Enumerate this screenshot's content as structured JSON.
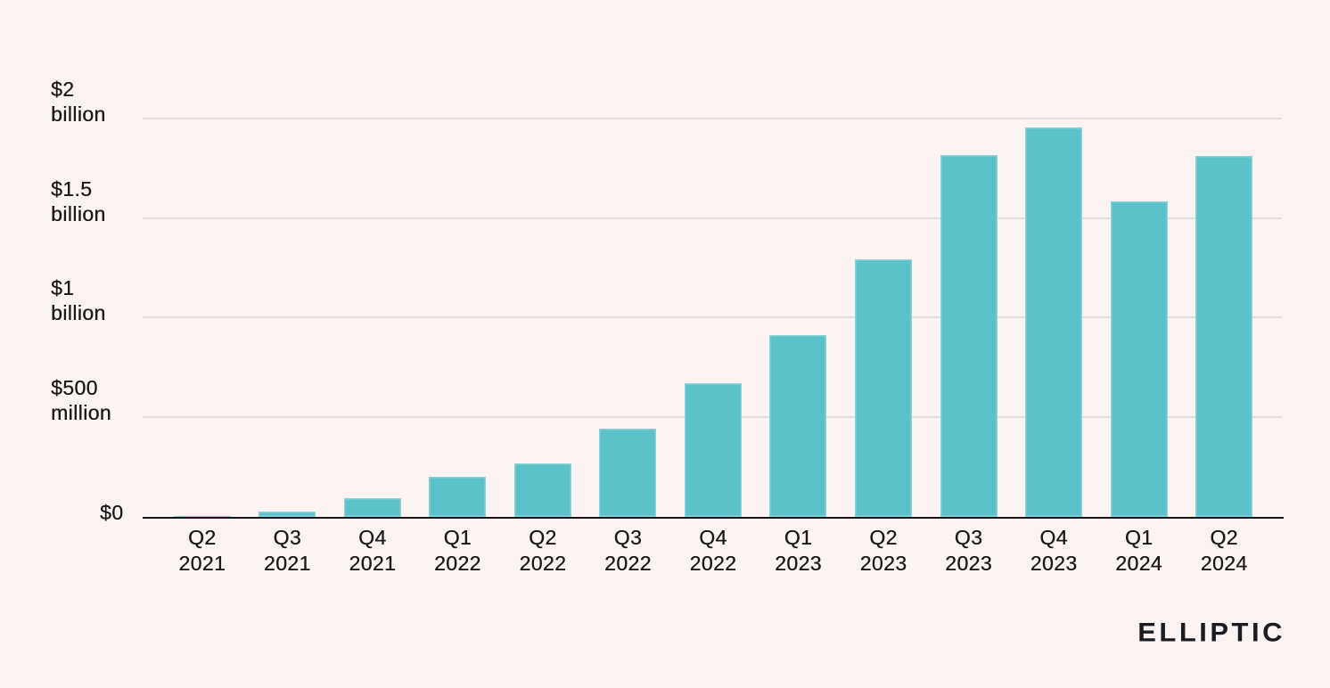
{
  "canvas": {
    "background": "#FAF3F1",
    "text_color": "#1A1A1A"
  },
  "chart_data": {
    "type": "bar",
    "title": "",
    "values_unit": "USD million",
    "categories": [
      {
        "quarter": "Q2",
        "year": "2021"
      },
      {
        "quarter": "Q3",
        "year": "2021"
      },
      {
        "quarter": "Q4",
        "year": "2021"
      },
      {
        "quarter": "Q1",
        "year": "2022"
      },
      {
        "quarter": "Q2",
        "year": "2022"
      },
      {
        "quarter": "Q3",
        "year": "2022"
      },
      {
        "quarter": "Q4",
        "year": "2022"
      },
      {
        "quarter": "Q1",
        "year": "2023"
      },
      {
        "quarter": "Q2",
        "year": "2023"
      },
      {
        "quarter": "Q3",
        "year": "2023"
      },
      {
        "quarter": "Q4",
        "year": "2023"
      },
      {
        "quarter": "Q1",
        "year": "2024"
      },
      {
        "quarter": "Q2",
        "year": "2024"
      }
    ],
    "values": [
      4,
      25,
      95,
      203,
      268,
      445,
      673,
      915,
      1296,
      1822,
      1958,
      1588,
      1815
    ],
    "y_ticks": [
      {
        "value": 2000,
        "lines": [
          "$2",
          "billion"
        ]
      },
      {
        "value": 1500,
        "lines": [
          "$1.5",
          "billion"
        ]
      },
      {
        "value": 1000,
        "lines": [
          "$1",
          "billion"
        ]
      },
      {
        "value": 500,
        "lines": [
          "$500",
          "million"
        ]
      },
      {
        "value": 0,
        "lines": [
          "$0"
        ]
      }
    ],
    "ylim": [
      0,
      2330
    ],
    "grid": true,
    "legend": "none",
    "bar_color": "#5BC2C9",
    "gridline_color": "#E2DEDC",
    "axis_color": "#16161C"
  },
  "branding": {
    "logo_text": "ELLIPTIC"
  }
}
